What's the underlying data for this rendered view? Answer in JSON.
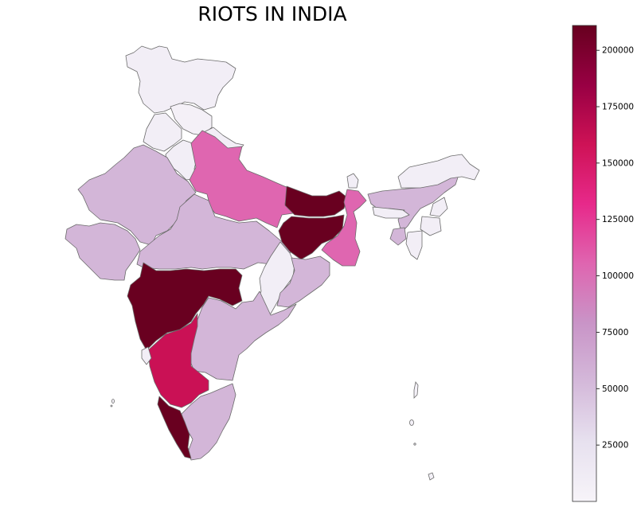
{
  "title": "RIOTS IN INDIA",
  "colorbar": {
    "min": 0,
    "max": 211000,
    "ticks": [
      {
        "value": 200000,
        "label": "200000"
      },
      {
        "value": 175000,
        "label": "175000"
      },
      {
        "value": 150000,
        "label": "150000"
      },
      {
        "value": 125000,
        "label": "125000"
      },
      {
        "value": 100000,
        "label": "100000"
      },
      {
        "value": 75000,
        "label": "75000"
      },
      {
        "value": 50000,
        "label": "50000"
      },
      {
        "value": 25000,
        "label": "25000"
      }
    ],
    "colormap": [
      "#f7f4f9",
      "#e7e1ef",
      "#d4b9da",
      "#c994c7",
      "#df65b0",
      "#e7298a",
      "#ce1256",
      "#980043",
      "#67001f"
    ]
  },
  "regions": [
    {
      "id": "jammu-kashmir",
      "value": 8000
    },
    {
      "id": "himachal-pradesh",
      "value": 5000
    },
    {
      "id": "punjab",
      "value": 8000
    },
    {
      "id": "haryana",
      "value": 8000
    },
    {
      "id": "uttarakhand",
      "value": 8000
    },
    {
      "id": "uttar-pradesh",
      "value": 105000
    },
    {
      "id": "rajasthan",
      "value": 55000
    },
    {
      "id": "gujarat",
      "value": 55000
    },
    {
      "id": "madhya-pradesh",
      "value": 55000
    },
    {
      "id": "bihar",
      "value": 210000
    },
    {
      "id": "jharkhand",
      "value": 210000
    },
    {
      "id": "west-bengal",
      "value": 105000
    },
    {
      "id": "chhattisgarh",
      "value": 8000
    },
    {
      "id": "odisha",
      "value": 55000
    },
    {
      "id": "maharashtra",
      "value": 210000
    },
    {
      "id": "telangana-andhra",
      "value": 55000
    },
    {
      "id": "karnataka",
      "value": 160000
    },
    {
      "id": "tamil-nadu",
      "value": 55000
    },
    {
      "id": "kerala",
      "value": 210000
    },
    {
      "id": "goa",
      "value": 8000
    },
    {
      "id": "sikkim",
      "value": 8000
    },
    {
      "id": "assam",
      "value": 55000
    },
    {
      "id": "arunachal-pradesh",
      "value": 8000
    },
    {
      "id": "meghalaya",
      "value": 8000
    },
    {
      "id": "nagaland",
      "value": 8000
    },
    {
      "id": "manipur",
      "value": 8000
    },
    {
      "id": "mizoram",
      "value": 8000
    },
    {
      "id": "tripura",
      "value": 55000
    }
  ]
}
